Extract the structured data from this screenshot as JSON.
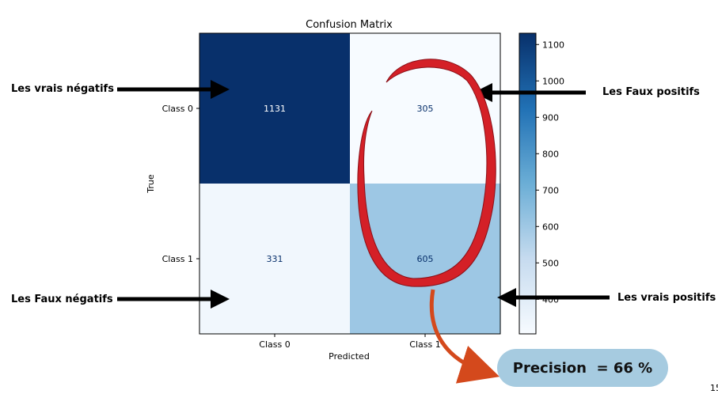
{
  "chart_data": {
    "type": "heatmap",
    "title": "Confusion Matrix",
    "xlabel": "Predicted",
    "ylabel": "True",
    "x_categories": [
      "Class 0",
      "Class 1"
    ],
    "y_categories": [
      "Class 0",
      "Class 1"
    ],
    "values": [
      [
        1131,
        305
      ],
      [
        331,
        605
      ]
    ],
    "colormap": "Blues",
    "colorbar": {
      "min": 305,
      "max": 1131,
      "ticks": [
        400,
        500,
        600,
        700,
        800,
        900,
        1000,
        1100
      ]
    }
  },
  "annotations": {
    "true_negatives": "Les  vrais négatifs",
    "false_positives": "Les  Faux positifs",
    "false_negatives": "Les  Faux négatifs",
    "true_positives": "Les  vrais positifs",
    "precision": "Precision  = 66 %",
    "corner_text": "15"
  },
  "colors": {
    "arrow": "#000000",
    "highlight_ellipse": "#d42027",
    "curved_arrow": "#d4491c",
    "precision_pill": "#a6cbe0"
  }
}
